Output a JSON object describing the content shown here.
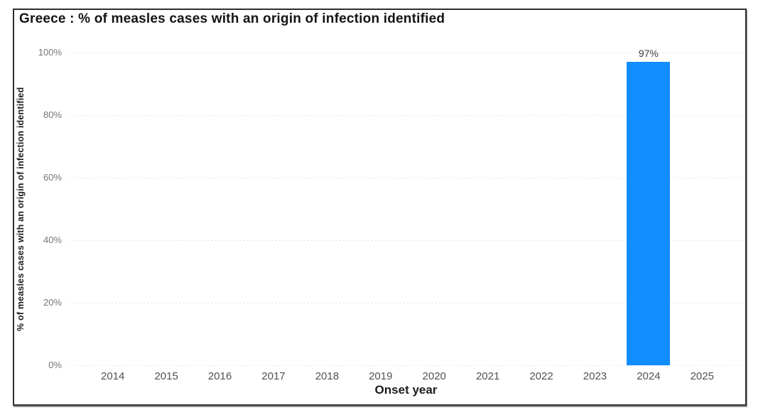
{
  "chart_data": {
    "type": "bar",
    "title": "Greece : % of measles cases with an origin of infection identified",
    "xlabel": "Onset year",
    "ylabel": "% of measles cases with an origin of infection identified",
    "categories": [
      "2014",
      "2015",
      "2016",
      "2017",
      "2018",
      "2019",
      "2020",
      "2021",
      "2022",
      "2023",
      "2024",
      "2025"
    ],
    "values": [
      null,
      null,
      null,
      null,
      null,
      null,
      null,
      null,
      null,
      null,
      97,
      null
    ],
    "data_labels": {
      "2024": "97%"
    },
    "ylim": [
      0,
      100
    ],
    "yticks": [
      0,
      20,
      40,
      60,
      80,
      100
    ],
    "ytick_suffix": "%",
    "grid": "dotted-horizontal",
    "legend": "none",
    "bar_color": "#118DFF",
    "grid_color": "#d4d4d4",
    "title_color": "#141414",
    "label_color": "#3d3d3d"
  }
}
